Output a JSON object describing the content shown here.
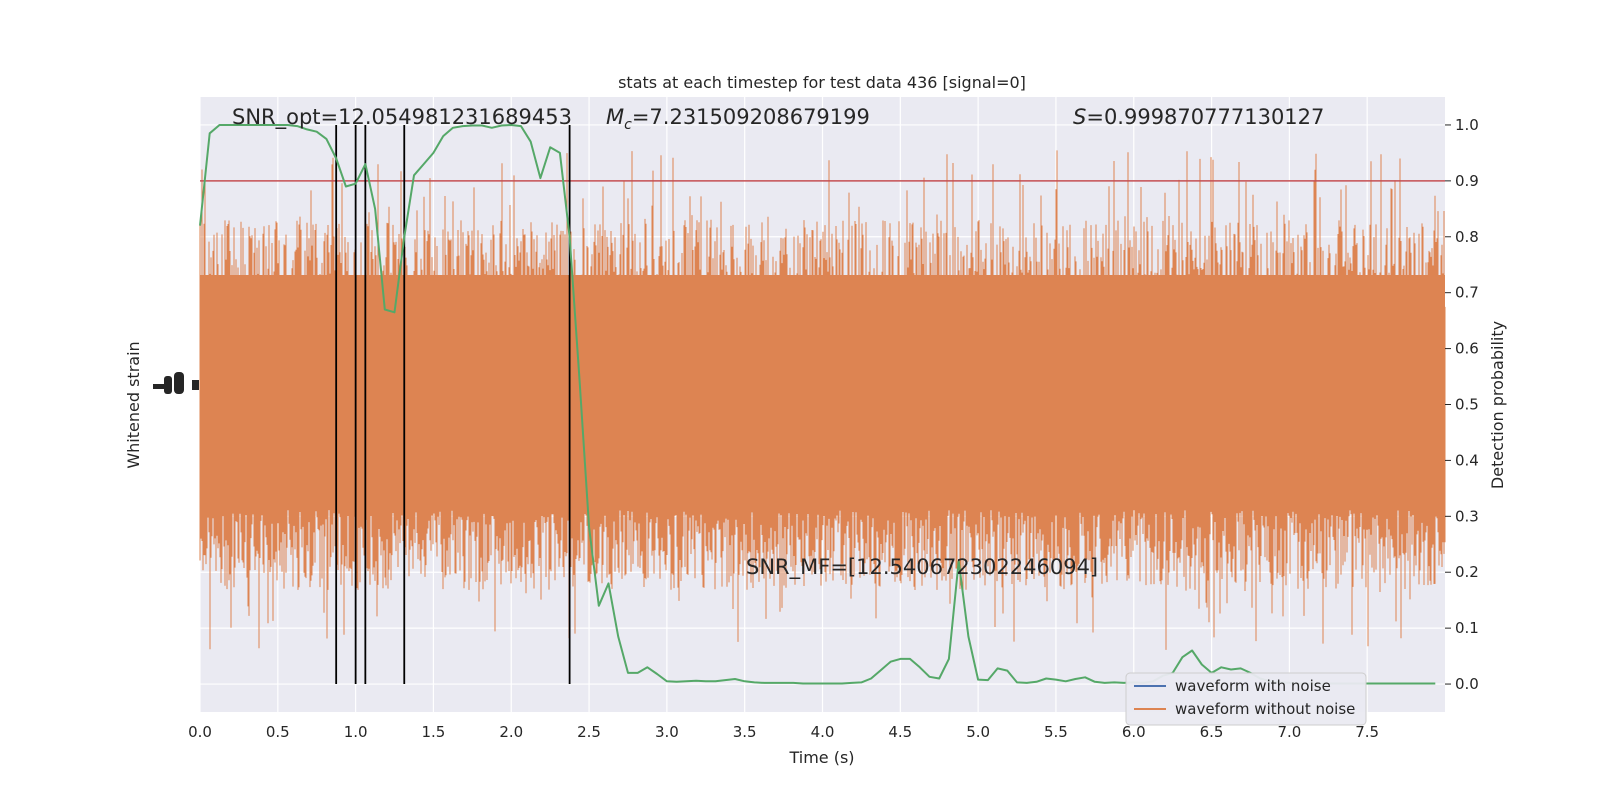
{
  "chart_data": {
    "type": "line",
    "title": "stats at each timestep for test data 436 [signal=0]",
    "xlabel": "Time (s)",
    "ylabel_left": "Whitened strain",
    "ylabel_right": "Detection probability",
    "xlim": [
      0,
      8
    ],
    "ylim_right": [
      -0.05,
      1.05
    ],
    "grid": true,
    "legend_position": "lower right",
    "x_ticks": [
      "0.0",
      "0.5",
      "1.0",
      "1.5",
      "2.0",
      "2.5",
      "3.0",
      "3.5",
      "4.0",
      "4.5",
      "5.0",
      "5.5",
      "6.0",
      "6.5",
      "7.0",
      "7.5"
    ],
    "y_right_ticks": [
      "0.0",
      "0.1",
      "0.2",
      "0.3",
      "0.4",
      "0.5",
      "0.6",
      "0.7",
      "0.8",
      "0.9",
      "1.0"
    ],
    "annotations": {
      "snr_opt": "SNR_opt=12.054981231689453",
      "mc_prefix": "M",
      "mc_sub": "c",
      "mc_value": "=7.231509208679199",
      "s_prefix": "S",
      "s_value": "=0.999870777130127",
      "snr_mf": "SNR_MF=[12.540672302246094]"
    },
    "threshold": 0.9,
    "vertical_lines": [
      0.875,
      1.0,
      1.0625,
      1.3125,
      2.375
    ],
    "series": [
      {
        "name": "waveform with noise",
        "color": "#4c72b0"
      },
      {
        "name": "waveform without noise",
        "color": "#dd8452"
      },
      {
        "color": "#55a868",
        "x": [
          0.0,
          0.0625,
          0.125,
          0.1875,
          0.25,
          0.3125,
          0.375,
          0.4375,
          0.5,
          0.5625,
          0.625,
          0.6875,
          0.75,
          0.8125,
          0.875,
          0.9375,
          1.0,
          1.0625,
          1.125,
          1.1875,
          1.25,
          1.3125,
          1.375,
          1.4375,
          1.5,
          1.5625,
          1.625,
          1.6875,
          1.75,
          1.8125,
          1.875,
          1.9375,
          2.0,
          2.0625,
          2.125,
          2.1875,
          2.25,
          2.3125,
          2.375,
          2.4375,
          2.5,
          2.5625,
          2.625,
          2.6875,
          2.75,
          2.8125,
          2.875,
          2.9375,
          3.0,
          3.0625,
          3.125,
          3.1875,
          3.25,
          3.3125,
          3.375,
          3.4375,
          3.5,
          3.5625,
          3.625,
          3.6875,
          3.75,
          3.8125,
          3.875,
          3.9375,
          4.0,
          4.0625,
          4.125,
          4.1875,
          4.25,
          4.3125,
          4.375,
          4.4375,
          4.5,
          4.5625,
          4.625,
          4.6875,
          4.75,
          4.8125,
          4.875,
          4.9375,
          5.0,
          5.0625,
          5.125,
          5.1875,
          5.25,
          5.3125,
          5.375,
          5.4375,
          5.5,
          5.5625,
          5.625,
          5.6875,
          5.75,
          5.8125,
          5.875,
          5.9375,
          6.0,
          6.0625,
          6.125,
          6.1875,
          6.25,
          6.3125,
          6.375,
          6.4375,
          6.5,
          6.5625,
          6.625,
          6.6875,
          6.75,
          6.8125,
          6.875,
          6.9375,
          7.0,
          7.0625,
          7.125,
          7.1875,
          7.25,
          7.3125,
          7.375,
          7.4375,
          7.5,
          7.5625,
          7.625,
          7.6875,
          7.75,
          7.8125,
          7.875,
          7.9375
        ],
        "values": [
          0.82,
          0.985,
          1.0,
          1.0,
          1.0,
          1.0,
          1.0,
          1.0,
          1.0,
          1.0,
          0.998,
          0.992,
          0.988,
          0.975,
          0.94,
          0.89,
          0.895,
          0.93,
          0.85,
          0.67,
          0.665,
          0.8,
          0.91,
          0.93,
          0.95,
          0.98,
          0.995,
          0.998,
          0.999,
          0.999,
          0.995,
          0.999,
          1.0,
          0.998,
          0.97,
          0.905,
          0.96,
          0.95,
          0.8,
          0.55,
          0.28,
          0.14,
          0.18,
          0.085,
          0.02,
          0.02,
          0.03,
          0.018,
          0.005,
          0.004,
          0.005,
          0.006,
          0.005,
          0.005,
          0.007,
          0.009,
          0.005,
          0.003,
          0.002,
          0.002,
          0.002,
          0.002,
          0.001,
          0.001,
          0.001,
          0.001,
          0.001,
          0.002,
          0.003,
          0.01,
          0.025,
          0.04,
          0.045,
          0.045,
          0.03,
          0.013,
          0.01,
          0.045,
          0.22,
          0.085,
          0.008,
          0.007,
          0.028,
          0.024,
          0.003,
          0.002,
          0.004,
          0.01,
          0.008,
          0.005,
          0.009,
          0.012,
          0.004,
          0.002,
          0.003,
          0.002,
          0.003,
          0.002,
          0.005,
          0.015,
          0.02,
          0.048,
          0.06,
          0.035,
          0.02,
          0.03,
          0.026,
          0.028,
          0.02,
          0.01,
          0.005,
          0.003,
          0.002,
          0.001,
          0.001,
          0.001,
          0.001,
          0.001,
          0.001,
          0.001,
          0.001,
          0.001,
          0.001,
          0.001,
          0.001,
          0.001,
          0.001,
          0.001
        ]
      }
    ],
    "colors": {
      "axes_bg": "#eaeaf2",
      "grid": "#ffffff",
      "threshold": "#c44e52",
      "vlines": "#000000"
    }
  }
}
